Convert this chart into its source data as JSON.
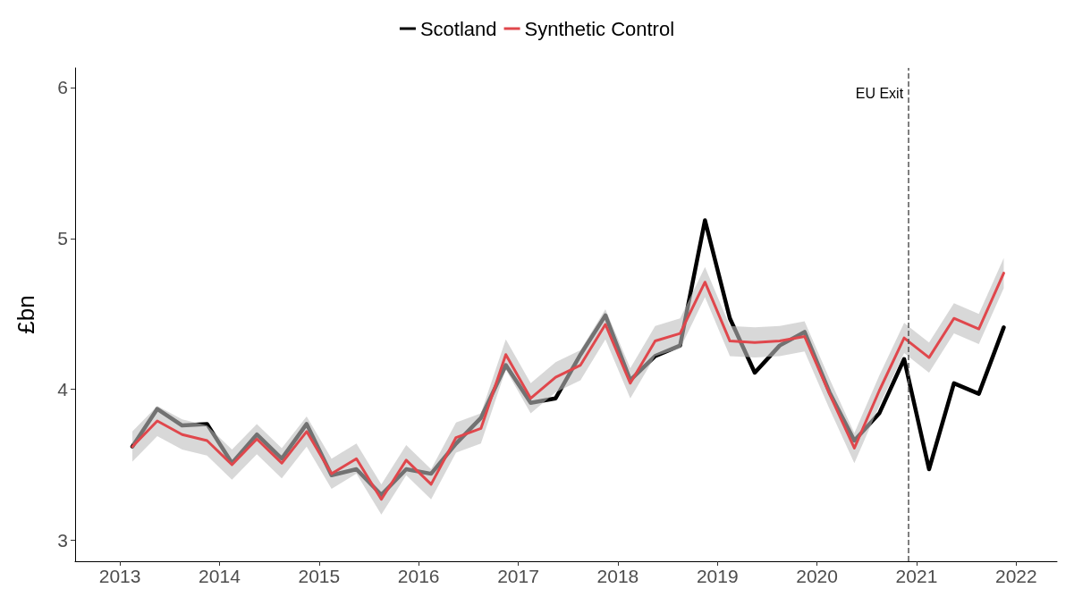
{
  "chart_data": {
    "type": "line",
    "ylabel": "£bn",
    "legend": "top",
    "grid": false,
    "line_style": "solid",
    "marker": "none",
    "x": [
      2013.125,
      2013.375,
      2013.625,
      2013.875,
      2014.125,
      2014.375,
      2014.625,
      2014.875,
      2015.125,
      2015.375,
      2015.625,
      2015.875,
      2016.125,
      2016.375,
      2016.625,
      2016.875,
      2017.125,
      2017.375,
      2017.625,
      2017.875,
      2018.125,
      2018.375,
      2018.625,
      2018.875,
      2019.125,
      2019.375,
      2019.625,
      2019.875,
      2020.125,
      2020.375,
      2020.625,
      2020.875,
      2021.125,
      2021.375,
      2021.625,
      2021.875
    ],
    "xlim": [
      2012.55,
      2022.41
    ],
    "xticks": [
      2013,
      2014,
      2015,
      2016,
      2017,
      2018,
      2019,
      2020,
      2021,
      2022
    ],
    "ylim": [
      2.86,
      6.13
    ],
    "yticks": [
      3,
      4,
      5,
      6
    ],
    "series": [
      {
        "name": "Scotland",
        "color": "#000000",
        "values": [
          3.62,
          3.87,
          3.76,
          3.77,
          3.51,
          3.7,
          3.54,
          3.77,
          3.43,
          3.47,
          3.3,
          3.47,
          3.44,
          3.64,
          3.81,
          4.16,
          3.91,
          3.94,
          4.23,
          4.49,
          4.06,
          4.22,
          4.29,
          5.12,
          4.47,
          4.11,
          4.29,
          4.38,
          3.98,
          3.66,
          3.84,
          4.2,
          3.47,
          4.04,
          3.97,
          4.41
        ]
      },
      {
        "name": "Synthetic Control",
        "color": "#e0474c",
        "values": [
          3.62,
          3.79,
          3.7,
          3.66,
          3.5,
          3.67,
          3.51,
          3.72,
          3.44,
          3.54,
          3.27,
          3.53,
          3.37,
          3.68,
          3.74,
          4.23,
          3.94,
          4.08,
          4.16,
          4.43,
          4.04,
          4.32,
          4.37,
          4.71,
          4.32,
          4.31,
          4.32,
          4.35,
          3.97,
          3.61,
          3.99,
          4.34,
          4.21,
          4.47,
          4.4,
          4.77
        ],
        "lower": [
          3.52,
          3.69,
          3.6,
          3.56,
          3.4,
          3.57,
          3.41,
          3.62,
          3.34,
          3.44,
          3.17,
          3.43,
          3.27,
          3.58,
          3.64,
          4.13,
          3.84,
          3.98,
          4.06,
          4.33,
          3.94,
          4.22,
          4.27,
          4.61,
          4.22,
          4.21,
          4.22,
          4.25,
          3.87,
          3.51,
          3.89,
          4.24,
          4.11,
          4.37,
          4.3,
          4.67
        ],
        "upper": [
          3.72,
          3.89,
          3.8,
          3.76,
          3.6,
          3.77,
          3.61,
          3.82,
          3.54,
          3.64,
          3.37,
          3.63,
          3.47,
          3.78,
          3.84,
          4.33,
          4.04,
          4.18,
          4.26,
          4.53,
          4.14,
          4.42,
          4.47,
          4.81,
          4.42,
          4.41,
          4.42,
          4.45,
          4.07,
          3.71,
          4.09,
          4.44,
          4.31,
          4.57,
          4.5,
          4.87
        ]
      }
    ],
    "ref_lines": [
      {
        "axis": "x",
        "value": 2020.92,
        "label": "EU Exit",
        "color": "#555555",
        "line_style": "dashed"
      }
    ]
  }
}
